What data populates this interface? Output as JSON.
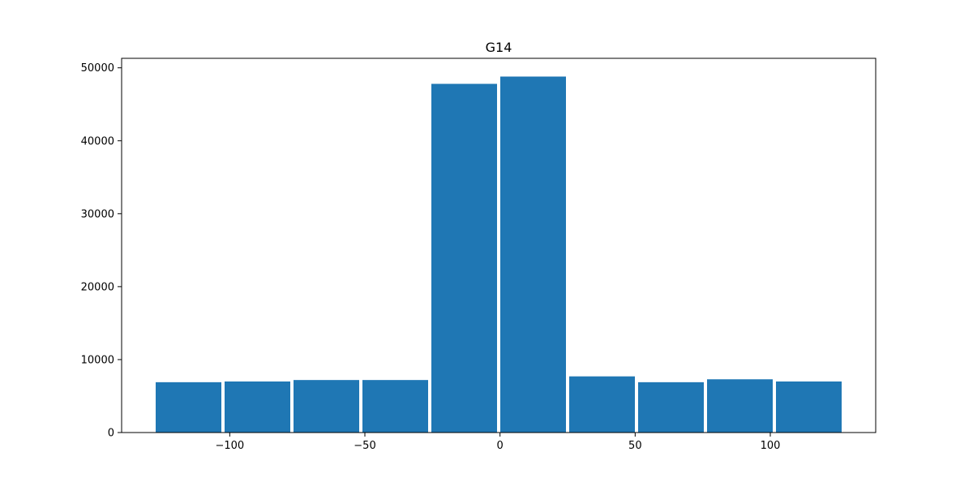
{
  "chart_data": {
    "type": "bar",
    "title": "G14",
    "xlabel": "",
    "ylabel": "",
    "bin_edges": [
      -128,
      -102.5,
      -77,
      -51.5,
      -26,
      -0.5,
      25,
      50.5,
      76,
      101.5,
      127
    ],
    "values": [
      6900,
      7000,
      7200,
      7200,
      47800,
      48800,
      7700,
      6900,
      7300,
      7000
    ],
    "xlim": [
      -140,
      139
    ],
    "ylim": [
      0,
      51300
    ],
    "xticks": [
      -100,
      -50,
      0,
      50,
      100
    ],
    "xtick_labels": [
      "−100",
      "−50",
      "0",
      "50",
      "100"
    ],
    "yticks": [
      0,
      10000,
      20000,
      30000,
      40000,
      50000
    ],
    "ytick_labels": [
      "0",
      "10000",
      "20000",
      "30000",
      "40000",
      "50000"
    ],
    "bar_color": "#1f77b4",
    "grid": false,
    "legend": "none"
  }
}
